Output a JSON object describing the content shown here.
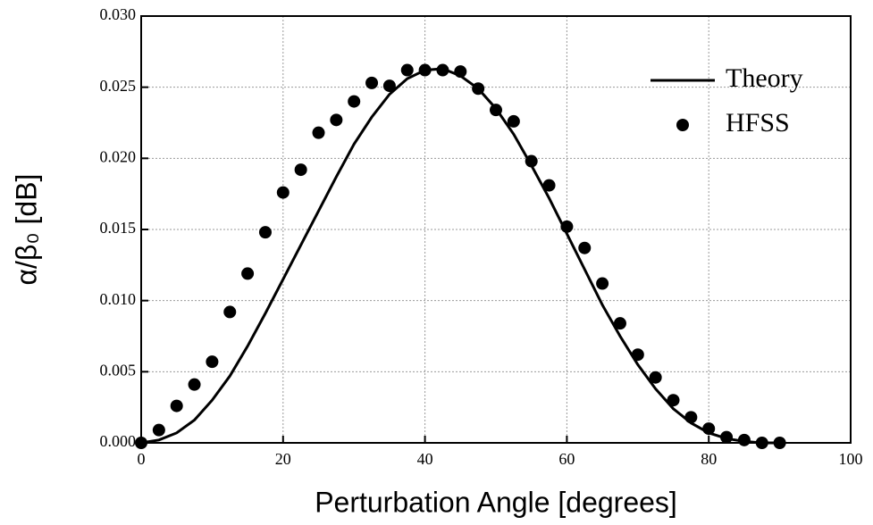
{
  "chart_data": {
    "type": "line",
    "xlabel": "Perturbation Angle [degrees]",
    "ylabel": "α/β₀ [dB]",
    "xlim": [
      0,
      100
    ],
    "xticks": [
      0,
      20,
      40,
      60,
      80,
      100
    ],
    "ylim": [
      0,
      0.03
    ],
    "yticks": [
      {
        "value": 0,
        "label": "0.000"
      },
      {
        "value": 0.005,
        "label": "0.005"
      },
      {
        "value": 0.01,
        "label": "0.010"
      },
      {
        "value": 0.015,
        "label": "0.015"
      },
      {
        "value": 0.02,
        "label": "0.020"
      },
      {
        "value": 0.025,
        "label": "0.025"
      },
      {
        "value": 0.03,
        "label": "0.030"
      }
    ],
    "grid": true,
    "legend": "upper right",
    "x": [
      0,
      2.5,
      5,
      7.5,
      10,
      12.5,
      15,
      17.5,
      20,
      22.5,
      25,
      27.5,
      30,
      32.5,
      35,
      37.5,
      40,
      42.5,
      45,
      47.5,
      50,
      52.5,
      55,
      57.5,
      60,
      62.5,
      65,
      67.5,
      70,
      72.5,
      75,
      77.5,
      80,
      82.5,
      85,
      87.5,
      90
    ],
    "series": [
      {
        "name": "Theory",
        "color": "#000000",
        "style": "line",
        "values": [
          0,
          0.0002,
          0.0007,
          0.0016,
          0.003,
          0.0047,
          0.0068,
          0.0091,
          0.0115,
          0.0139,
          0.0163,
          0.0187,
          0.021,
          0.0229,
          0.0245,
          0.0256,
          0.0262,
          0.0263,
          0.0258,
          0.0249,
          0.0235,
          0.0217,
          0.0195,
          0.0172,
          0.0147,
          0.0122,
          0.0097,
          0.0075,
          0.0055,
          0.0038,
          0.0024,
          0.0014,
          0.0007,
          0.0003,
          0.0001,
          0,
          0
        ]
      },
      {
        "name": "HFSS",
        "color": "#000000",
        "style": "marker",
        "values": [
          0,
          0.0009,
          0.0026,
          0.0041,
          0.0057,
          0.0092,
          0.0119,
          0.0148,
          0.0176,
          0.0192,
          0.0218,
          0.0227,
          0.024,
          0.0253,
          0.0251,
          0.0262,
          0.0262,
          0.0262,
          0.0261,
          0.0249,
          0.0234,
          0.0226,
          0.0198,
          0.0181,
          0.0152,
          0.0137,
          0.0112,
          0.0084,
          0.0062,
          0.0046,
          0.003,
          0.0018,
          0.001,
          0.0004,
          0.0002,
          0,
          0
        ]
      }
    ]
  }
}
